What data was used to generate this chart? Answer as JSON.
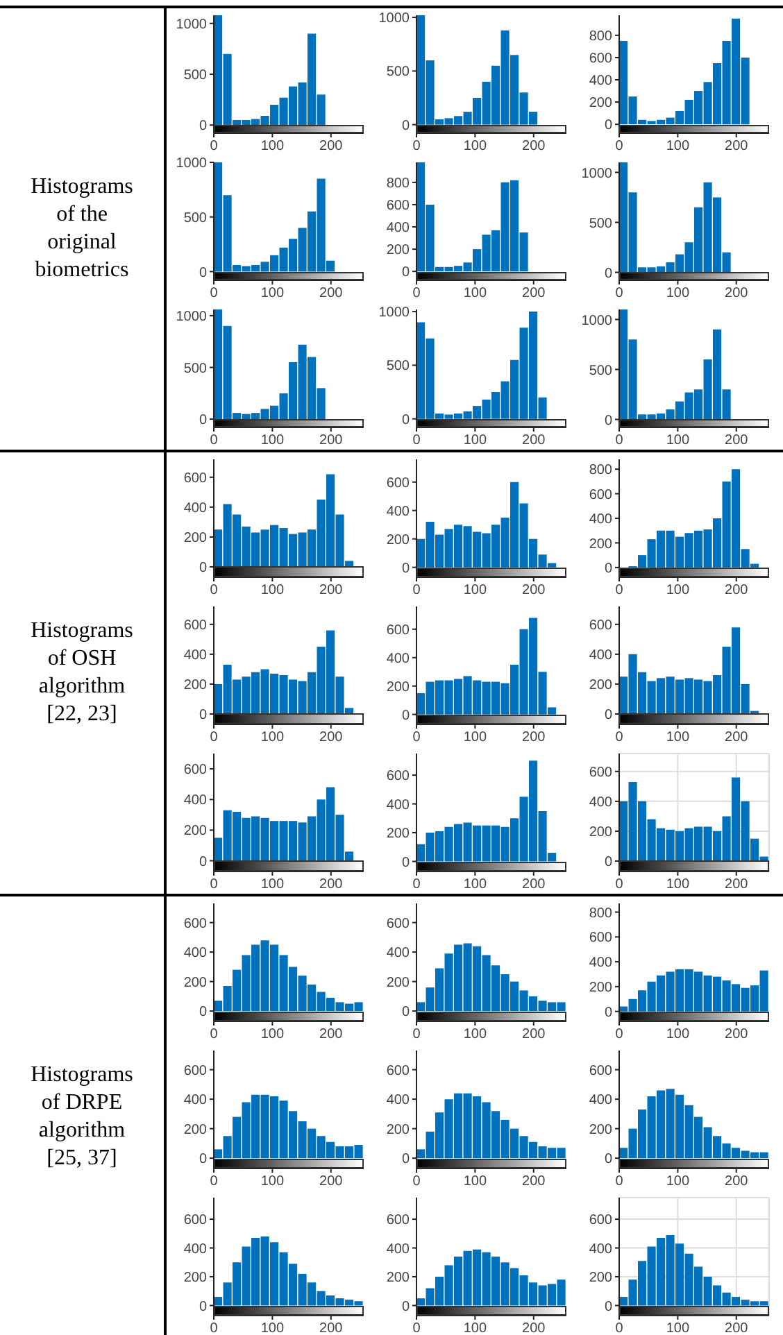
{
  "chart_data": [
    {
      "type": "other",
      "title": "Histograms of the original biometrics"
    },
    {
      "type": "histogram",
      "bins": [
        0,
        16,
        32,
        48,
        64,
        80,
        96,
        112,
        128,
        144,
        160,
        176,
        192,
        208,
        224,
        240,
        256
      ],
      "values": [
        1080,
        700,
        50,
        50,
        60,
        90,
        200,
        270,
        380,
        420,
        900,
        300,
        0,
        0,
        0,
        0
      ],
      "color": "#0072bd",
      "xlim": [
        0,
        256
      ],
      "xticks": [
        0,
        100,
        200
      ],
      "ylim": [
        -80,
        1080
      ],
      "yticks": [
        0,
        500,
        1000
      ]
    },
    {
      "type": "histogram",
      "bins": [
        0,
        16,
        32,
        48,
        64,
        80,
        96,
        112,
        128,
        144,
        160,
        176,
        192,
        208,
        224,
        240,
        256
      ],
      "values": [
        1020,
        600,
        50,
        60,
        80,
        120,
        250,
        400,
        550,
        880,
        650,
        300,
        120,
        0,
        0,
        0
      ],
      "color": "#0072bd",
      "xlim": [
        0,
        256
      ],
      "xticks": [
        0,
        100,
        200
      ],
      "ylim": [
        -80,
        1020
      ],
      "yticks": [
        0,
        500,
        1000
      ]
    },
    {
      "type": "histogram",
      "bins": [
        0,
        16,
        32,
        48,
        64,
        80,
        96,
        112,
        128,
        144,
        160,
        176,
        192,
        208,
        224,
        240,
        256
      ],
      "values": [
        750,
        250,
        40,
        30,
        40,
        60,
        120,
        220,
        300,
        380,
        550,
        750,
        950,
        600,
        0,
        0
      ],
      "color": "#0072bd",
      "xlim": [
        0,
        256
      ],
      "xticks": [
        0,
        100,
        200
      ],
      "ylim": [
        -80,
        980
      ],
      "yticks": [
        0,
        200,
        400,
        600,
        800
      ]
    },
    {
      "type": "histogram",
      "bins": [
        0,
        16,
        32,
        48,
        64,
        80,
        96,
        112,
        128,
        144,
        160,
        176,
        192,
        208,
        224,
        240,
        256
      ],
      "values": [
        1000,
        700,
        60,
        50,
        60,
        90,
        150,
        220,
        300,
        400,
        550,
        850,
        100,
        0,
        0,
        0
      ],
      "color": "#0072bd",
      "xlim": [
        0,
        256
      ],
      "xticks": [
        0,
        100,
        200
      ],
      "ylim": [
        -80,
        1000
      ],
      "yticks": [
        0,
        500,
        1000
      ]
    },
    {
      "type": "histogram",
      "bins": [
        0,
        16,
        32,
        48,
        64,
        80,
        96,
        112,
        128,
        144,
        160,
        176,
        192,
        208,
        224,
        240,
        256
      ],
      "values": [
        980,
        600,
        40,
        40,
        50,
        80,
        200,
        330,
        370,
        800,
        820,
        350,
        0,
        0,
        0,
        0
      ],
      "color": "#0072bd",
      "xlim": [
        0,
        256
      ],
      "xticks": [
        0,
        100,
        200
      ],
      "ylim": [
        -80,
        980
      ],
      "yticks": [
        0,
        200,
        400,
        600,
        800
      ]
    },
    {
      "type": "histogram",
      "bins": [
        0,
        16,
        32,
        48,
        64,
        80,
        96,
        112,
        128,
        144,
        160,
        176,
        192,
        208,
        224,
        240,
        256
      ],
      "values": [
        1100,
        800,
        50,
        50,
        60,
        100,
        180,
        300,
        650,
        900,
        750,
        200,
        0,
        0,
        0,
        0
      ],
      "color": "#0072bd",
      "xlim": [
        0,
        256
      ],
      "xticks": [
        0,
        100,
        200
      ],
      "ylim": [
        -80,
        1100
      ],
      "yticks": [
        0,
        500,
        1000
      ]
    },
    {
      "type": "histogram",
      "bins": [
        0,
        16,
        32,
        48,
        64,
        80,
        96,
        112,
        128,
        144,
        160,
        176,
        192,
        208,
        224,
        240,
        256
      ],
      "values": [
        1060,
        900,
        60,
        50,
        60,
        100,
        130,
        250,
        550,
        720,
        600,
        300,
        0,
        0,
        0,
        0
      ],
      "color": "#0072bd",
      "xlim": [
        0,
        256
      ],
      "xticks": [
        0,
        100,
        200
      ],
      "ylim": [
        -80,
        1060
      ],
      "yticks": [
        0,
        500,
        1000
      ]
    },
    {
      "type": "histogram",
      "bins": [
        0,
        16,
        32,
        48,
        64,
        80,
        96,
        112,
        128,
        144,
        160,
        176,
        192,
        208,
        224,
        240,
        256
      ],
      "values": [
        900,
        750,
        50,
        40,
        50,
        70,
        120,
        180,
        250,
        350,
        550,
        850,
        1000,
        200,
        0,
        0
      ],
      "color": "#0072bd",
      "xlim": [
        0,
        256
      ],
      "xticks": [
        0,
        100,
        200
      ],
      "ylim": [
        -80,
        1020
      ],
      "yticks": [
        0,
        500,
        1000
      ]
    },
    {
      "type": "histogram",
      "bins": [
        0,
        16,
        32,
        48,
        64,
        80,
        96,
        112,
        128,
        144,
        160,
        176,
        192,
        208,
        224,
        240,
        256
      ],
      "values": [
        1100,
        800,
        50,
        50,
        60,
        100,
        180,
        270,
        300,
        600,
        900,
        300,
        0,
        0,
        0,
        0
      ],
      "color": "#0072bd",
      "xlim": [
        0,
        256
      ],
      "xticks": [
        0,
        100,
        200
      ],
      "ylim": [
        -80,
        1100
      ],
      "yticks": [
        0,
        500,
        1000
      ]
    },
    {
      "type": "other",
      "title": "Histograms of OSH algorithm [22, 23]"
    },
    {
      "type": "histogram",
      "bins": [
        0,
        16,
        32,
        48,
        64,
        80,
        96,
        112,
        128,
        144,
        160,
        176,
        192,
        208,
        224,
        240,
        256
      ],
      "values": [
        250,
        420,
        350,
        270,
        230,
        250,
        280,
        260,
        220,
        230,
        250,
        450,
        620,
        350,
        40,
        0
      ],
      "color": "#0072bd",
      "xlim": [
        0,
        256
      ],
      "xticks": [
        0,
        100,
        200
      ],
      "ylim": [
        -70,
        720
      ],
      "yticks": [
        0,
        200,
        400,
        600
      ]
    },
    {
      "type": "histogram",
      "bins": [
        0,
        16,
        32,
        48,
        64,
        80,
        96,
        112,
        128,
        144,
        160,
        176,
        192,
        208,
        224,
        240,
        256
      ],
      "values": [
        200,
        320,
        230,
        270,
        300,
        290,
        250,
        240,
        300,
        350,
        600,
        450,
        200,
        90,
        30,
        0
      ],
      "color": "#0072bd",
      "xlim": [
        0,
        256
      ],
      "xticks": [
        0,
        100,
        200
      ],
      "ylim": [
        -70,
        760
      ],
      "yticks": [
        0,
        200,
        400,
        600
      ]
    },
    {
      "type": "histogram",
      "bins": [
        0,
        16,
        32,
        48,
        64,
        80,
        96,
        112,
        128,
        144,
        160,
        176,
        192,
        208,
        224,
        240,
        256
      ],
      "values": [
        0,
        10,
        100,
        230,
        300,
        300,
        250,
        280,
        300,
        310,
        400,
        700,
        800,
        150,
        30,
        0
      ],
      "color": "#0072bd",
      "xlim": [
        0,
        256
      ],
      "xticks": [
        0,
        100,
        200
      ],
      "ylim": [
        -80,
        880
      ],
      "yticks": [
        0,
        200,
        400,
        600,
        800
      ]
    },
    {
      "type": "histogram",
      "bins": [
        0,
        16,
        32,
        48,
        64,
        80,
        96,
        112,
        128,
        144,
        160,
        176,
        192,
        208,
        224,
        240,
        256
      ],
      "values": [
        200,
        330,
        230,
        250,
        280,
        300,
        270,
        260,
        230,
        220,
        280,
        450,
        560,
        250,
        40,
        0
      ],
      "color": "#0072bd",
      "xlim": [
        0,
        256
      ],
      "xticks": [
        0,
        100,
        200
      ],
      "ylim": [
        -70,
        720
      ],
      "yticks": [
        0,
        200,
        400,
        600
      ]
    },
    {
      "type": "histogram",
      "bins": [
        0,
        16,
        32,
        48,
        64,
        80,
        96,
        112,
        128,
        144,
        160,
        176,
        192,
        208,
        224,
        240,
        256
      ],
      "values": [
        150,
        230,
        240,
        240,
        250,
        270,
        240,
        230,
        230,
        220,
        350,
        600,
        680,
        300,
        50,
        0
      ],
      "color": "#0072bd",
      "xlim": [
        0,
        256
      ],
      "xticks": [
        0,
        100,
        200
      ],
      "ylim": [
        -70,
        760
      ],
      "yticks": [
        0,
        200,
        400,
        600
      ]
    },
    {
      "type": "histogram",
      "bins": [
        0,
        16,
        32,
        48,
        64,
        80,
        96,
        112,
        128,
        144,
        160,
        176,
        192,
        208,
        224,
        240,
        256
      ],
      "values": [
        250,
        400,
        280,
        220,
        240,
        250,
        230,
        240,
        230,
        220,
        260,
        450,
        580,
        200,
        20,
        0
      ],
      "color": "#0072bd",
      "xlim": [
        0,
        256
      ],
      "xticks": [
        0,
        100,
        200
      ],
      "ylim": [
        -70,
        720
      ],
      "yticks": [
        0,
        200,
        400,
        600
      ]
    },
    {
      "type": "histogram",
      "bins": [
        0,
        16,
        32,
        48,
        64,
        80,
        96,
        112,
        128,
        144,
        160,
        176,
        192,
        208,
        224,
        240,
        256
      ],
      "values": [
        150,
        330,
        320,
        280,
        290,
        280,
        260,
        260,
        260,
        250,
        290,
        400,
        480,
        300,
        60,
        0
      ],
      "color": "#0072bd",
      "xlim": [
        0,
        256
      ],
      "xticks": [
        0,
        100,
        200
      ],
      "ylim": [
        -70,
        700
      ],
      "yticks": [
        0,
        200,
        400,
        600
      ]
    },
    {
      "type": "histogram",
      "bins": [
        0,
        16,
        32,
        48,
        64,
        80,
        96,
        112,
        128,
        144,
        160,
        176,
        192,
        208,
        224,
        240,
        256
      ],
      "values": [
        120,
        200,
        210,
        240,
        260,
        270,
        250,
        250,
        250,
        240,
        300,
        450,
        700,
        350,
        60,
        0
      ],
      "color": "#0072bd",
      "xlim": [
        0,
        256
      ],
      "xticks": [
        0,
        100,
        200
      ],
      "ylim": [
        -70,
        750
      ],
      "yticks": [
        0,
        200,
        400,
        600
      ]
    },
    {
      "type": "histogram",
      "bins": [
        0,
        16,
        32,
        48,
        64,
        80,
        96,
        112,
        128,
        144,
        160,
        176,
        192,
        208,
        224,
        240,
        256
      ],
      "values": [
        400,
        530,
        400,
        280,
        220,
        210,
        200,
        220,
        230,
        230,
        200,
        300,
        560,
        400,
        150,
        30
      ],
      "color": "#0072bd",
      "xlim": [
        0,
        256
      ],
      "xticks": [
        0,
        100,
        200
      ],
      "ylim": [
        -70,
        720
      ],
      "yticks": [
        0,
        200,
        400,
        600
      ],
      "grid": true
    },
    {
      "type": "other",
      "title": "Histograms of DRPE algorithm [25, 37]"
    },
    {
      "type": "histogram",
      "bins": [
        0,
        16,
        32,
        48,
        64,
        80,
        96,
        112,
        128,
        144,
        160,
        176,
        192,
        208,
        224,
        240,
        256
      ],
      "values": [
        70,
        170,
        280,
        380,
        450,
        480,
        450,
        380,
        300,
        240,
        180,
        130,
        90,
        60,
        50,
        60
      ],
      "color": "#0072bd",
      "xlim": [
        0,
        256
      ],
      "xticks": [
        0,
        100,
        200
      ],
      "ylim": [
        -70,
        730
      ],
      "yticks": [
        0,
        200,
        400,
        600
      ]
    },
    {
      "type": "histogram",
      "bins": [
        0,
        16,
        32,
        48,
        64,
        80,
        96,
        112,
        128,
        144,
        160,
        176,
        192,
        208,
        224,
        240,
        256
      ],
      "values": [
        60,
        160,
        290,
        390,
        450,
        460,
        440,
        380,
        310,
        250,
        200,
        140,
        100,
        70,
        60,
        60
      ],
      "color": "#0072bd",
      "xlim": [
        0,
        256
      ],
      "xticks": [
        0,
        100,
        200
      ],
      "ylim": [
        -70,
        730
      ],
      "yticks": [
        0,
        200,
        400,
        600
      ]
    },
    {
      "type": "histogram",
      "bins": [
        0,
        16,
        32,
        48,
        64,
        80,
        96,
        112,
        128,
        144,
        160,
        176,
        192,
        208,
        224,
        240,
        256
      ],
      "values": [
        40,
        100,
        170,
        240,
        290,
        320,
        340,
        340,
        320,
        290,
        280,
        250,
        220,
        190,
        210,
        330
      ],
      "color": "#0072bd",
      "xlim": [
        0,
        256
      ],
      "xticks": [
        0,
        100,
        200
      ],
      "ylim": [
        -80,
        870
      ],
      "yticks": [
        0,
        200,
        400,
        600,
        800
      ]
    },
    {
      "type": "histogram",
      "bins": [
        0,
        16,
        32,
        48,
        64,
        80,
        96,
        112,
        128,
        144,
        160,
        176,
        192,
        208,
        224,
        240,
        256
      ],
      "values": [
        60,
        150,
        280,
        380,
        430,
        430,
        420,
        390,
        320,
        250,
        200,
        150,
        110,
        80,
        80,
        90
      ],
      "color": "#0072bd",
      "xlim": [
        0,
        256
      ],
      "xticks": [
        0,
        100,
        200
      ],
      "ylim": [
        -70,
        730
      ],
      "yticks": [
        0,
        200,
        400,
        600
      ]
    },
    {
      "type": "histogram",
      "bins": [
        0,
        16,
        32,
        48,
        64,
        80,
        96,
        112,
        128,
        144,
        160,
        176,
        192,
        208,
        224,
        240,
        256
      ],
      "values": [
        60,
        180,
        310,
        400,
        440,
        440,
        420,
        380,
        320,
        260,
        200,
        150,
        110,
        80,
        70,
        70
      ],
      "color": "#0072bd",
      "xlim": [
        0,
        256
      ],
      "xticks": [
        0,
        100,
        200
      ],
      "ylim": [
        -70,
        730
      ],
      "yticks": [
        0,
        200,
        400,
        600
      ]
    },
    {
      "type": "histogram",
      "bins": [
        0,
        16,
        32,
        48,
        64,
        80,
        96,
        112,
        128,
        144,
        160,
        176,
        192,
        208,
        224,
        240,
        256
      ],
      "values": [
        70,
        200,
        330,
        420,
        460,
        470,
        430,
        360,
        280,
        210,
        150,
        100,
        70,
        50,
        40,
        40
      ],
      "color": "#0072bd",
      "xlim": [
        0,
        256
      ],
      "xticks": [
        0,
        100,
        200
      ],
      "ylim": [
        -70,
        730
      ],
      "yticks": [
        0,
        200,
        400,
        600
      ]
    },
    {
      "type": "histogram",
      "bins": [
        0,
        16,
        32,
        48,
        64,
        80,
        96,
        112,
        128,
        144,
        160,
        176,
        192,
        208,
        224,
        240,
        256
      ],
      "values": [
        60,
        160,
        300,
        410,
        470,
        480,
        440,
        370,
        290,
        220,
        160,
        100,
        70,
        50,
        40,
        30
      ],
      "color": "#0072bd",
      "xlim": [
        0,
        256
      ],
      "xticks": [
        0,
        100,
        200
      ],
      "ylim": [
        -70,
        750
      ],
      "yticks": [
        0,
        200,
        400,
        600
      ]
    },
    {
      "type": "histogram",
      "bins": [
        0,
        16,
        32,
        48,
        64,
        80,
        96,
        112,
        128,
        144,
        160,
        176,
        192,
        208,
        224,
        240,
        256
      ],
      "values": [
        50,
        120,
        200,
        280,
        340,
        380,
        390,
        370,
        340,
        300,
        260,
        210,
        160,
        140,
        150,
        180
      ],
      "color": "#0072bd",
      "xlim": [
        0,
        256
      ],
      "xticks": [
        0,
        100,
        200
      ],
      "ylim": [
        -70,
        750
      ],
      "yticks": [
        0,
        200,
        400,
        600
      ]
    },
    {
      "type": "histogram",
      "bins": [
        0,
        16,
        32,
        48,
        64,
        80,
        96,
        112,
        128,
        144,
        160,
        176,
        192,
        208,
        224,
        240,
        256
      ],
      "values": [
        60,
        180,
        310,
        410,
        470,
        490,
        430,
        360,
        270,
        200,
        140,
        90,
        60,
        40,
        30,
        30
      ],
      "color": "#0072bd",
      "xlim": [
        0,
        256
      ],
      "xticks": [
        0,
        100,
        200
      ],
      "ylim": [
        -70,
        750
      ],
      "yticks": [
        0,
        200,
        400,
        600
      ],
      "grid": true
    }
  ]
}
